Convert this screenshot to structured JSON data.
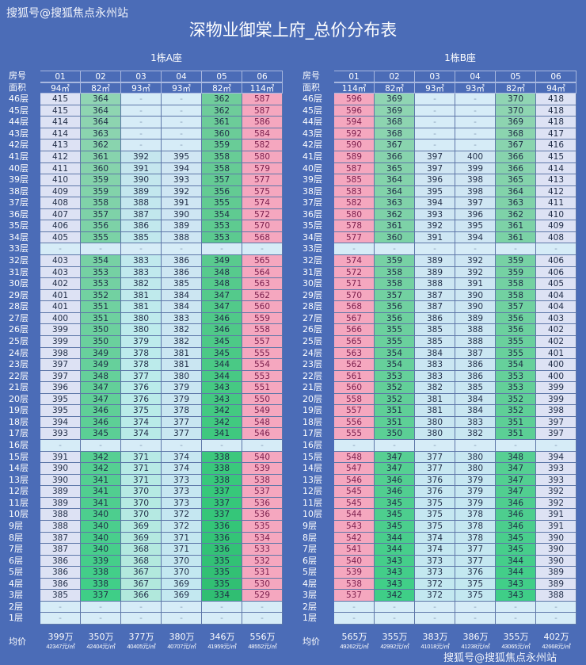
{
  "watermark": "搜狐号@搜狐焦点永州站",
  "title": "深物业御棠上府_总价分布表",
  "labels": {
    "room": "房号",
    "area": "面积",
    "avg": "均价"
  },
  "floors": [
    "46层",
    "45层",
    "44层",
    "43层",
    "42层",
    "41层",
    "40层",
    "39层",
    "38层",
    "37层",
    "36层",
    "35层",
    "34层",
    "33层",
    "32层",
    "31层",
    "30层",
    "29层",
    "28层",
    "27层",
    "26层",
    "25层",
    "24层",
    "23层",
    "22层",
    "21层",
    "20层",
    "19层",
    "18层",
    "17层",
    "16层",
    "15层",
    "14层",
    "13层",
    "12层",
    "11层",
    "10层",
    "9层",
    "8层",
    "7层",
    "6层",
    "5层",
    "4层",
    "3层",
    "2层",
    "1层"
  ],
  "column_colors": {
    "lavender": "#dde2f4",
    "green": "#6fcf9c",
    "green_dark": "#36b76d",
    "teal": "#c4e8e4",
    "lightblue": "#d3e9f5",
    "pink": "#f5a7bf",
    "empty": "#d6ecf7"
  },
  "buildings": [
    {
      "name": "1栋A座",
      "rooms": [
        "01",
        "02",
        "03",
        "04",
        "05",
        "06"
      ],
      "areas": [
        "94㎡",
        "82㎡",
        "93㎡",
        "93㎡",
        "82㎡",
        "114㎡"
      ],
      "col_styles": [
        "lavender",
        "green",
        "teal",
        "lightblue",
        "green_dark",
        "pink"
      ],
      "rows": [
        [
          "415",
          "364",
          "-",
          "-",
          "362",
          "587"
        ],
        [
          "415",
          "364",
          "-",
          "-",
          "362",
          "587"
        ],
        [
          "414",
          "364",
          "-",
          "-",
          "361",
          "586"
        ],
        [
          "414",
          "363",
          "-",
          "-",
          "360",
          "584"
        ],
        [
          "413",
          "362",
          "-",
          "-",
          "359",
          "582"
        ],
        [
          "412",
          "361",
          "392",
          "395",
          "358",
          "580"
        ],
        [
          "411",
          "360",
          "391",
          "394",
          "358",
          "579"
        ],
        [
          "410",
          "359",
          "390",
          "393",
          "357",
          "577"
        ],
        [
          "409",
          "359",
          "389",
          "392",
          "356",
          "575"
        ],
        [
          "408",
          "358",
          "388",
          "391",
          "355",
          "574"
        ],
        [
          "407",
          "357",
          "387",
          "390",
          "354",
          "572"
        ],
        [
          "406",
          "356",
          "386",
          "389",
          "353",
          "570"
        ],
        [
          "405",
          "355",
          "385",
          "388",
          "353",
          "568"
        ],
        [
          "-",
          "-",
          "-",
          "-",
          "-",
          "-"
        ],
        [
          "403",
          "354",
          "383",
          "386",
          "349",
          "565"
        ],
        [
          "403",
          "353",
          "383",
          "386",
          "348",
          "564"
        ],
        [
          "402",
          "353",
          "382",
          "385",
          "348",
          "563"
        ],
        [
          "401",
          "352",
          "381",
          "384",
          "347",
          "562"
        ],
        [
          "401",
          "351",
          "381",
          "384",
          "347",
          "560"
        ],
        [
          "400",
          "351",
          "380",
          "383",
          "346",
          "559"
        ],
        [
          "399",
          "350",
          "380",
          "382",
          "346",
          "558"
        ],
        [
          "399",
          "350",
          "379",
          "382",
          "345",
          "557"
        ],
        [
          "398",
          "349",
          "378",
          "381",
          "345",
          "555"
        ],
        [
          "397",
          "349",
          "378",
          "381",
          "344",
          "554"
        ],
        [
          "397",
          "348",
          "377",
          "380",
          "344",
          "553"
        ],
        [
          "396",
          "347",
          "376",
          "379",
          "343",
          "551"
        ],
        [
          "395",
          "347",
          "376",
          "379",
          "343",
          "550"
        ],
        [
          "395",
          "346",
          "375",
          "378",
          "342",
          "549"
        ],
        [
          "394",
          "346",
          "374",
          "377",
          "342",
          "548"
        ],
        [
          "393",
          "345",
          "374",
          "377",
          "341",
          "546"
        ],
        [
          "-",
          "-",
          "-",
          "-",
          "-",
          "-"
        ],
        [
          "391",
          "342",
          "371",
          "374",
          "338",
          "540"
        ],
        [
          "390",
          "342",
          "371",
          "374",
          "338",
          "539"
        ],
        [
          "390",
          "341",
          "371",
          "373",
          "338",
          "538"
        ],
        [
          "389",
          "341",
          "370",
          "373",
          "337",
          "537"
        ],
        [
          "389",
          "341",
          "370",
          "373",
          "337",
          "536"
        ],
        [
          "388",
          "340",
          "370",
          "372",
          "337",
          "536"
        ],
        [
          "388",
          "340",
          "369",
          "372",
          "336",
          "535"
        ],
        [
          "387",
          "340",
          "369",
          "371",
          "336",
          "534"
        ],
        [
          "387",
          "340",
          "368",
          "371",
          "336",
          "533"
        ],
        [
          "386",
          "339",
          "368",
          "370",
          "335",
          "532"
        ],
        [
          "386",
          "338",
          "367",
          "370",
          "335",
          "531"
        ],
        [
          "386",
          "338",
          "367",
          "369",
          "335",
          "530"
        ],
        [
          "385",
          "337",
          "366",
          "369",
          "334",
          "529"
        ],
        [
          "-",
          "-",
          "-",
          "-",
          "-",
          "-"
        ],
        [
          "-",
          "-",
          "-",
          "-",
          "-",
          "-"
        ]
      ],
      "avg_total": [
        "399万",
        "350万",
        "377万",
        "380万",
        "346万",
        "556万"
      ],
      "avg_unit": [
        "42347元/㎡",
        "42404元/㎡",
        "40405元/㎡",
        "40707元/㎡",
        "41959元/㎡",
        "48552元/㎡"
      ]
    },
    {
      "name": "1栋B座",
      "rooms": [
        "01",
        "02",
        "03",
        "04",
        "05",
        "06"
      ],
      "areas": [
        "114㎡",
        "82㎡",
        "93㎡",
        "93㎡",
        "82㎡",
        "94㎡"
      ],
      "col_styles": [
        "pink",
        "green",
        "lightblue",
        "lightblue",
        "green",
        "lavender"
      ],
      "rows": [
        [
          "596",
          "369",
          "-",
          "-",
          "370",
          "418"
        ],
        [
          "596",
          "369",
          "-",
          "-",
          "370",
          "418"
        ],
        [
          "594",
          "368",
          "-",
          "-",
          "369",
          "418"
        ],
        [
          "592",
          "368",
          "-",
          "-",
          "368",
          "417"
        ],
        [
          "590",
          "367",
          "-",
          "-",
          "367",
          "416"
        ],
        [
          "589",
          "366",
          "397",
          "400",
          "366",
          "415"
        ],
        [
          "587",
          "365",
          "397",
          "399",
          "366",
          "414"
        ],
        [
          "585",
          "364",
          "396",
          "398",
          "365",
          "413"
        ],
        [
          "583",
          "364",
          "395",
          "398",
          "364",
          "412"
        ],
        [
          "582",
          "363",
          "394",
          "397",
          "363",
          "411"
        ],
        [
          "580",
          "362",
          "393",
          "396",
          "362",
          "410"
        ],
        [
          "578",
          "361",
          "392",
          "395",
          "361",
          "409"
        ],
        [
          "577",
          "360",
          "391",
          "394",
          "361",
          "408"
        ],
        [
          "-",
          "-",
          "-",
          "-",
          "-",
          "-"
        ],
        [
          "574",
          "359",
          "389",
          "392",
          "359",
          "406"
        ],
        [
          "572",
          "358",
          "389",
          "392",
          "359",
          "406"
        ],
        [
          "571",
          "358",
          "388",
          "391",
          "358",
          "405"
        ],
        [
          "570",
          "357",
          "387",
          "390",
          "358",
          "404"
        ],
        [
          "568",
          "356",
          "387",
          "390",
          "357",
          "404"
        ],
        [
          "567",
          "356",
          "386",
          "389",
          "356",
          "403"
        ],
        [
          "566",
          "355",
          "385",
          "388",
          "356",
          "402"
        ],
        [
          "565",
          "355",
          "385",
          "388",
          "355",
          "402"
        ],
        [
          "563",
          "354",
          "384",
          "387",
          "355",
          "401"
        ],
        [
          "562",
          "354",
          "383",
          "386",
          "354",
          "400"
        ],
        [
          "561",
          "353",
          "383",
          "386",
          "353",
          "400"
        ],
        [
          "560",
          "352",
          "382",
          "385",
          "353",
          "399"
        ],
        [
          "558",
          "352",
          "381",
          "384",
          "352",
          "399"
        ],
        [
          "557",
          "351",
          "381",
          "384",
          "352",
          "398"
        ],
        [
          "556",
          "351",
          "380",
          "383",
          "351",
          "397"
        ],
        [
          "555",
          "350",
          "380",
          "382",
          "351",
          "397"
        ],
        [
          "-",
          "-",
          "-",
          "-",
          "-",
          "-"
        ],
        [
          "548",
          "347",
          "377",
          "380",
          "348",
          "394"
        ],
        [
          "547",
          "347",
          "377",
          "380",
          "347",
          "393"
        ],
        [
          "546",
          "346",
          "376",
          "379",
          "347",
          "393"
        ],
        [
          "545",
          "346",
          "376",
          "379",
          "347",
          "392"
        ],
        [
          "545",
          "345",
          "375",
          "379",
          "346",
          "392"
        ],
        [
          "544",
          "345",
          "375",
          "378",
          "346",
          "391"
        ],
        [
          "543",
          "345",
          "375",
          "378",
          "346",
          "391"
        ],
        [
          "542",
          "344",
          "374",
          "378",
          "345",
          "390"
        ],
        [
          "541",
          "344",
          "374",
          "377",
          "345",
          "390"
        ],
        [
          "540",
          "343",
          "373",
          "377",
          "344",
          "390"
        ],
        [
          "539",
          "343",
          "373",
          "376",
          "344",
          "389"
        ],
        [
          "538",
          "343",
          "372",
          "375",
          "343",
          "389"
        ],
        [
          "537",
          "342",
          "372",
          "375",
          "343",
          "388"
        ],
        [
          "-",
          "-",
          "-",
          "-",
          "-",
          "-"
        ],
        [
          "-",
          "-",
          "-",
          "-",
          "-",
          "-"
        ]
      ],
      "avg_total": [
        "565万",
        "355万",
        "383万",
        "386万",
        "355万",
        "402万"
      ],
      "avg_unit": [
        "49262元/㎡",
        "42992元/㎡",
        "41018元/㎡",
        "41238元/㎡",
        "43065元/㎡",
        "42668元/㎡"
      ]
    }
  ]
}
